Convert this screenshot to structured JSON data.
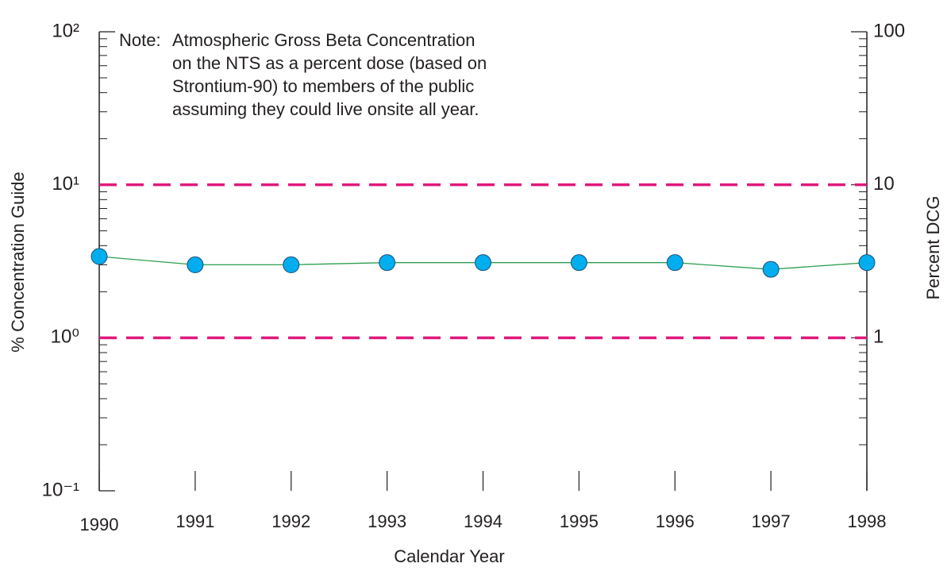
{
  "chart_data": {
    "type": "line",
    "annotation": {
      "prefix": "Note:",
      "lines": [
        "Atmospheric Gross Beta Concentration",
        "on the NTS as a percent dose (based on",
        "Strontium-90) to members of the public",
        "assuming they could live onsite all year."
      ]
    },
    "xlabel": "Calendar Year",
    "ylabel": "% Concentration Guide",
    "y2label": "Percent DCG",
    "x": [
      1990,
      1991,
      1992,
      1993,
      1994,
      1995,
      1996,
      1997,
      1998
    ],
    "xlim": [
      1990,
      1998
    ],
    "xticks": [
      1990,
      1991,
      1992,
      1993,
      1994,
      1995,
      1996,
      1997,
      1998
    ],
    "series": [
      {
        "name": "Gross Beta",
        "color": "#00aeef",
        "line_color": "#2e9e4f",
        "values": [
          3.4,
          3.0,
          3.0,
          3.1,
          3.1,
          3.1,
          3.1,
          2.8,
          3.1
        ]
      }
    ],
    "yscale": "log",
    "ylim": [
      0.1,
      100
    ],
    "yticks": [
      {
        "value": 0.1,
        "label": "10⁻¹"
      },
      {
        "value": 1,
        "label": "10⁰"
      },
      {
        "value": 10,
        "label": "10¹"
      },
      {
        "value": 100,
        "label": "10²"
      }
    ],
    "yminorticks": [
      0.2,
      0.3,
      0.4,
      0.5,
      0.6,
      0.7,
      0.8,
      0.9,
      2,
      3,
      4,
      5,
      6,
      7,
      8,
      9,
      20,
      30,
      40,
      50,
      60,
      70,
      80,
      90
    ],
    "y2lim": [
      0.1,
      100
    ],
    "y2ticks": [
      1,
      10,
      100
    ],
    "reference_lines": {
      "color": "#e0197d",
      "values": [
        1,
        10
      ]
    }
  }
}
